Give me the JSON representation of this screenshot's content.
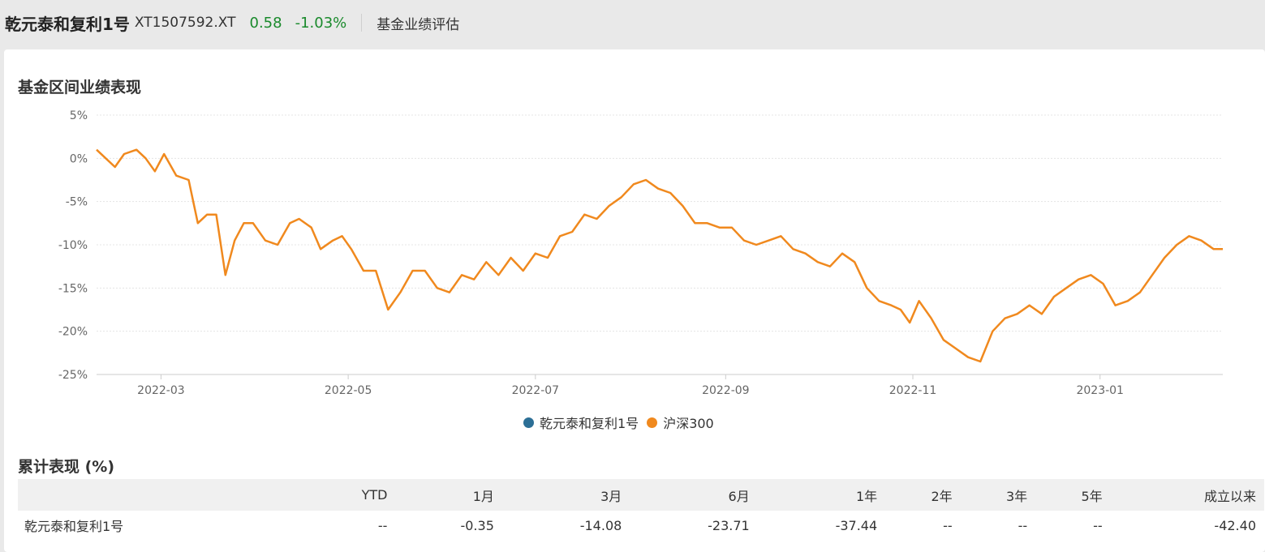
{
  "header": {
    "fund_name": "乾元泰和复利1号",
    "fund_code": "XT1507592.XT",
    "nav": "0.58",
    "change": "-1.03%",
    "tab_label": "基金业绩评估"
  },
  "chart_section": {
    "title": "基金区间业绩表现"
  },
  "chart_data": {
    "type": "line",
    "title": "",
    "xlabel": "",
    "ylabel": "",
    "ylim": [
      -25,
      5
    ],
    "yticks": [
      5,
      0,
      -5,
      -10,
      -15,
      -20,
      -25
    ],
    "ytick_labels": [
      "5%",
      "0%",
      "-5%",
      "-10%",
      "-15%",
      "-20%",
      "-25%"
    ],
    "xlim": [
      "2022-02-08",
      "2023-02-10"
    ],
    "xticks": [
      "2022-03-01",
      "2022-05-01",
      "2022-07-01",
      "2022-09-01",
      "2022-11-01",
      "2023-01-01"
    ],
    "xtick_labels": [
      "2022-03",
      "2022-05",
      "2022-07",
      "2022-09",
      "2022-11",
      "2023-01"
    ],
    "grid": true,
    "legend_position": "bottom-center",
    "colors": {
      "fund": "#2c6f96",
      "index": "#f0891e",
      "grid": "#e4e4e4",
      "axis": "#cccccc"
    },
    "legend": [
      "乾元泰和复利1号",
      "沪深300"
    ],
    "series": [
      {
        "name": "乾元泰和复利1号",
        "color": "#2c6f96",
        "x": [],
        "y": []
      },
      {
        "name": "沪深300",
        "color": "#f0891e",
        "x": [
          "2022-02-08",
          "2022-02-11",
          "2022-02-14",
          "2022-02-17",
          "2022-02-21",
          "2022-02-24",
          "2022-02-27",
          "2022-03-02",
          "2022-03-06",
          "2022-03-10",
          "2022-03-13",
          "2022-03-16",
          "2022-03-19",
          "2022-03-22",
          "2022-03-25",
          "2022-03-28",
          "2022-03-31",
          "2022-04-04",
          "2022-04-08",
          "2022-04-12",
          "2022-04-15",
          "2022-04-19",
          "2022-04-22",
          "2022-04-26",
          "2022-04-29",
          "2022-05-02",
          "2022-05-06",
          "2022-05-10",
          "2022-05-14",
          "2022-05-18",
          "2022-05-22",
          "2022-05-26",
          "2022-05-30",
          "2022-06-03",
          "2022-06-07",
          "2022-06-11",
          "2022-06-15",
          "2022-06-19",
          "2022-06-23",
          "2022-06-27",
          "2022-07-01",
          "2022-07-05",
          "2022-07-09",
          "2022-07-13",
          "2022-07-17",
          "2022-07-21",
          "2022-07-25",
          "2022-07-29",
          "2022-08-02",
          "2022-08-06",
          "2022-08-10",
          "2022-08-14",
          "2022-08-18",
          "2022-08-22",
          "2022-08-26",
          "2022-08-30",
          "2022-09-03",
          "2022-09-07",
          "2022-09-11",
          "2022-09-15",
          "2022-09-19",
          "2022-09-23",
          "2022-09-27",
          "2022-10-01",
          "2022-10-05",
          "2022-10-09",
          "2022-10-13",
          "2022-10-17",
          "2022-10-21",
          "2022-10-25",
          "2022-10-28",
          "2022-10-31",
          "2022-11-03",
          "2022-11-07",
          "2022-11-11",
          "2022-11-15",
          "2022-11-19",
          "2022-11-23",
          "2022-11-27",
          "2022-12-01",
          "2022-12-05",
          "2022-12-09",
          "2022-12-13",
          "2022-12-17",
          "2022-12-21",
          "2022-12-25",
          "2022-12-29",
          "2023-01-02",
          "2023-01-06",
          "2023-01-10",
          "2023-01-14",
          "2023-01-18",
          "2023-01-22",
          "2023-01-26",
          "2023-01-30",
          "2023-02-03",
          "2023-02-07",
          "2023-02-10"
        ],
        "y": [
          1.0,
          0.0,
          -1.0,
          0.5,
          1.0,
          0.0,
          -1.5,
          0.5,
          -2.0,
          -2.5,
          -7.5,
          -6.5,
          -6.5,
          -13.5,
          -9.5,
          -7.5,
          -7.5,
          -9.5,
          -10.0,
          -7.5,
          -7.0,
          -8.0,
          -10.5,
          -9.5,
          -9.0,
          -10.5,
          -13.0,
          -13.0,
          -17.5,
          -15.5,
          -13.0,
          -13.0,
          -15.0,
          -15.5,
          -13.5,
          -14.0,
          -12.0,
          -13.5,
          -11.5,
          -13.0,
          -11.0,
          -11.5,
          -9.0,
          -8.5,
          -6.5,
          -7.0,
          -5.5,
          -4.5,
          -3.0,
          -2.5,
          -3.5,
          -4.0,
          -5.5,
          -7.5,
          -7.5,
          -8.0,
          -8.0,
          -9.5,
          -10.0,
          -9.5,
          -9.0,
          -10.5,
          -11.0,
          -12.0,
          -12.5,
          -11.0,
          -12.0,
          -15.0,
          -16.5,
          -17.0,
          -17.5,
          -19.0,
          -16.5,
          -18.5,
          -21.0,
          -22.0,
          -23.0,
          -23.5,
          -20.0,
          -18.5,
          -18.0,
          -17.0,
          -18.0,
          -16.0,
          -15.0,
          -14.0,
          -13.5,
          -14.5,
          -17.0,
          -16.5,
          -15.5,
          -13.5,
          -11.5,
          -10.0,
          -9.0,
          -9.5,
          -10.5,
          -10.5
        ]
      }
    ]
  },
  "table_section": {
    "title": "累计表现 (%)",
    "columns": [
      "",
      "YTD",
      "1月",
      "3月",
      "6月",
      "1年",
      "2年",
      "3年",
      "5年",
      "成立以来"
    ],
    "rows": [
      {
        "cells": [
          "乾元泰和复利1号",
          "--",
          "-0.35",
          "-14.08",
          "-23.71",
          "-37.44",
          "--",
          "--",
          "--",
          "-42.40"
        ]
      }
    ]
  }
}
